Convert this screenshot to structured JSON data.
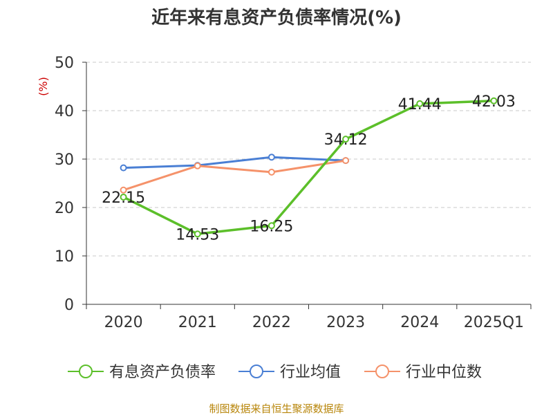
{
  "chart_data": {
    "type": "line",
    "title": "近年来有息资产负债率情况(%)",
    "ylabel": "(%)",
    "xlabel": "",
    "categories": [
      "2020",
      "2021",
      "2022",
      "2023",
      "2024",
      "2025Q1"
    ],
    "ylim": [
      0,
      50
    ],
    "yticks": [
      0,
      10,
      20,
      30,
      40,
      50
    ],
    "grid": true,
    "legend_position": "bottom",
    "series": [
      {
        "name": "有息资产负债率",
        "color": "#5cbf2a",
        "values": [
          22.15,
          14.53,
          16.25,
          34.12,
          41.44,
          42.03
        ],
        "labels": [
          "22.15",
          "14.53",
          "16.25",
          "34.12",
          "41.44",
          "42.03"
        ]
      },
      {
        "name": "行业均值",
        "color": "#4a7fd4",
        "values": [
          28.2,
          28.7,
          30.4,
          29.7,
          null,
          null
        ]
      },
      {
        "name": "行业中位数",
        "color": "#f5926a",
        "values": [
          23.6,
          28.6,
          27.3,
          29.7,
          null,
          null
        ]
      }
    ]
  },
  "footer": {
    "source": "制图数据来自恒生聚源数据库"
  }
}
